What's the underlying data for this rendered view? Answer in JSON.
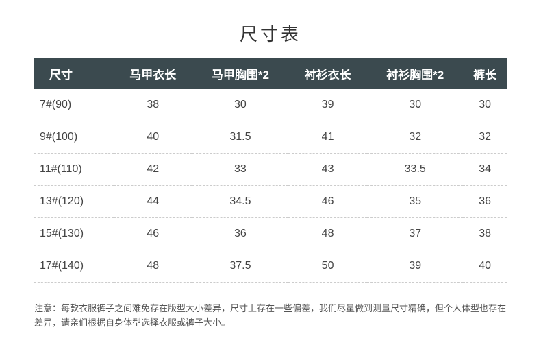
{
  "title": "尺寸表",
  "columns": [
    "尺寸",
    "马甲衣长",
    "马甲胸围*2",
    "衬衫衣长",
    "衬衫胸围*2",
    "裤长"
  ],
  "rows": [
    [
      "7#(90)",
      "38",
      "30",
      "39",
      "30",
      "30"
    ],
    [
      "9#(100)",
      "40",
      "31.5",
      "41",
      "32",
      "32"
    ],
    [
      "11#(110)",
      "42",
      "33",
      "43",
      "33.5",
      "34"
    ],
    [
      "13#(120)",
      "44",
      "34.5",
      "46",
      "35",
      "36"
    ],
    [
      "15#(130)",
      "46",
      "36",
      "48",
      "37",
      "38"
    ],
    [
      "17#(140)",
      "48",
      "37.5",
      "50",
      "39",
      "40"
    ]
  ],
  "note": "注意：每款衣服裤子之间难免存在版型大小差异，尺寸上存在一些偏差，我们尽量做到测量尺寸精确，但个人体型也存在差异，请亲们根据自身体型选择衣服或裤子大小。",
  "styles": {
    "header_bg": "#3b4a4f",
    "header_text": "#ffffff",
    "body_text": "#444444",
    "note_text": "#555555",
    "row_border": "#cccccc",
    "title_fontsize": 26,
    "header_fontsize": 17,
    "cell_fontsize": 16,
    "note_fontsize": 13
  }
}
